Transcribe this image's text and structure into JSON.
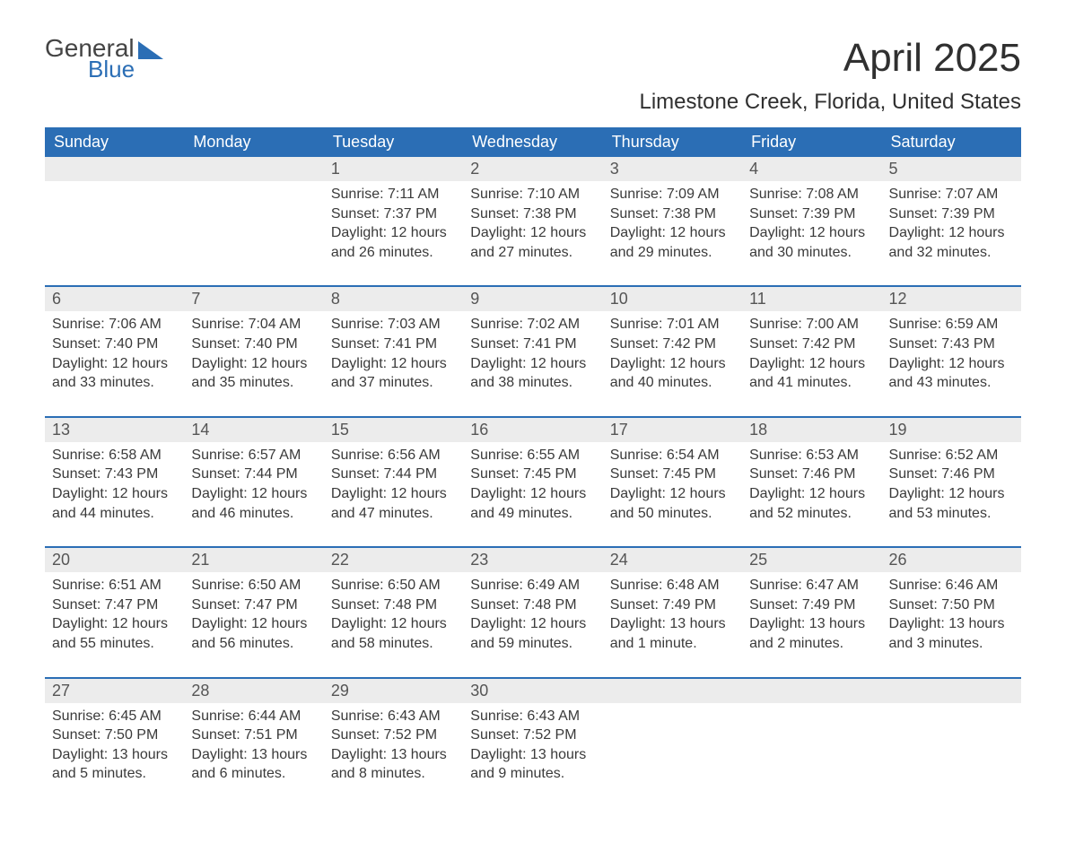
{
  "logo": {
    "line1": "General",
    "line2": "Blue"
  },
  "title": "April 2025",
  "location": "Limestone Creek, Florida, United States",
  "colors": {
    "header_bg": "#2b6eb5",
    "header_text": "#ffffff",
    "week_rule": "#2b6eb5",
    "daynum_bg": "#ececec",
    "text": "#333333",
    "background": "#ffffff"
  },
  "typography": {
    "title_fontsize": 44,
    "location_fontsize": 24,
    "header_fontsize": 18,
    "daynum_fontsize": 18,
    "body_fontsize": 16
  },
  "layout": {
    "columns": 7,
    "rows": 5
  },
  "day_headers": [
    "Sunday",
    "Monday",
    "Tuesday",
    "Wednesday",
    "Thursday",
    "Friday",
    "Saturday"
  ],
  "weeks": [
    [
      null,
      null,
      {
        "n": "1",
        "sunrise": "Sunrise: 7:11 AM",
        "sunset": "Sunset: 7:37 PM",
        "daylight": "Daylight: 12 hours and 26 minutes."
      },
      {
        "n": "2",
        "sunrise": "Sunrise: 7:10 AM",
        "sunset": "Sunset: 7:38 PM",
        "daylight": "Daylight: 12 hours and 27 minutes."
      },
      {
        "n": "3",
        "sunrise": "Sunrise: 7:09 AM",
        "sunset": "Sunset: 7:38 PM",
        "daylight": "Daylight: 12 hours and 29 minutes."
      },
      {
        "n": "4",
        "sunrise": "Sunrise: 7:08 AM",
        "sunset": "Sunset: 7:39 PM",
        "daylight": "Daylight: 12 hours and 30 minutes."
      },
      {
        "n": "5",
        "sunrise": "Sunrise: 7:07 AM",
        "sunset": "Sunset: 7:39 PM",
        "daylight": "Daylight: 12 hours and 32 minutes."
      }
    ],
    [
      {
        "n": "6",
        "sunrise": "Sunrise: 7:06 AM",
        "sunset": "Sunset: 7:40 PM",
        "daylight": "Daylight: 12 hours and 33 minutes."
      },
      {
        "n": "7",
        "sunrise": "Sunrise: 7:04 AM",
        "sunset": "Sunset: 7:40 PM",
        "daylight": "Daylight: 12 hours and 35 minutes."
      },
      {
        "n": "8",
        "sunrise": "Sunrise: 7:03 AM",
        "sunset": "Sunset: 7:41 PM",
        "daylight": "Daylight: 12 hours and 37 minutes."
      },
      {
        "n": "9",
        "sunrise": "Sunrise: 7:02 AM",
        "sunset": "Sunset: 7:41 PM",
        "daylight": "Daylight: 12 hours and 38 minutes."
      },
      {
        "n": "10",
        "sunrise": "Sunrise: 7:01 AM",
        "sunset": "Sunset: 7:42 PM",
        "daylight": "Daylight: 12 hours and 40 minutes."
      },
      {
        "n": "11",
        "sunrise": "Sunrise: 7:00 AM",
        "sunset": "Sunset: 7:42 PM",
        "daylight": "Daylight: 12 hours and 41 minutes."
      },
      {
        "n": "12",
        "sunrise": "Sunrise: 6:59 AM",
        "sunset": "Sunset: 7:43 PM",
        "daylight": "Daylight: 12 hours and 43 minutes."
      }
    ],
    [
      {
        "n": "13",
        "sunrise": "Sunrise: 6:58 AM",
        "sunset": "Sunset: 7:43 PM",
        "daylight": "Daylight: 12 hours and 44 minutes."
      },
      {
        "n": "14",
        "sunrise": "Sunrise: 6:57 AM",
        "sunset": "Sunset: 7:44 PM",
        "daylight": "Daylight: 12 hours and 46 minutes."
      },
      {
        "n": "15",
        "sunrise": "Sunrise: 6:56 AM",
        "sunset": "Sunset: 7:44 PM",
        "daylight": "Daylight: 12 hours and 47 minutes."
      },
      {
        "n": "16",
        "sunrise": "Sunrise: 6:55 AM",
        "sunset": "Sunset: 7:45 PM",
        "daylight": "Daylight: 12 hours and 49 minutes."
      },
      {
        "n": "17",
        "sunrise": "Sunrise: 6:54 AM",
        "sunset": "Sunset: 7:45 PM",
        "daylight": "Daylight: 12 hours and 50 minutes."
      },
      {
        "n": "18",
        "sunrise": "Sunrise: 6:53 AM",
        "sunset": "Sunset: 7:46 PM",
        "daylight": "Daylight: 12 hours and 52 minutes."
      },
      {
        "n": "19",
        "sunrise": "Sunrise: 6:52 AM",
        "sunset": "Sunset: 7:46 PM",
        "daylight": "Daylight: 12 hours and 53 minutes."
      }
    ],
    [
      {
        "n": "20",
        "sunrise": "Sunrise: 6:51 AM",
        "sunset": "Sunset: 7:47 PM",
        "daylight": "Daylight: 12 hours and 55 minutes."
      },
      {
        "n": "21",
        "sunrise": "Sunrise: 6:50 AM",
        "sunset": "Sunset: 7:47 PM",
        "daylight": "Daylight: 12 hours and 56 minutes."
      },
      {
        "n": "22",
        "sunrise": "Sunrise: 6:50 AM",
        "sunset": "Sunset: 7:48 PM",
        "daylight": "Daylight: 12 hours and 58 minutes."
      },
      {
        "n": "23",
        "sunrise": "Sunrise: 6:49 AM",
        "sunset": "Sunset: 7:48 PM",
        "daylight": "Daylight: 12 hours and 59 minutes."
      },
      {
        "n": "24",
        "sunrise": "Sunrise: 6:48 AM",
        "sunset": "Sunset: 7:49 PM",
        "daylight": "Daylight: 13 hours and 1 minute."
      },
      {
        "n": "25",
        "sunrise": "Sunrise: 6:47 AM",
        "sunset": "Sunset: 7:49 PM",
        "daylight": "Daylight: 13 hours and 2 minutes."
      },
      {
        "n": "26",
        "sunrise": "Sunrise: 6:46 AM",
        "sunset": "Sunset: 7:50 PM",
        "daylight": "Daylight: 13 hours and 3 minutes."
      }
    ],
    [
      {
        "n": "27",
        "sunrise": "Sunrise: 6:45 AM",
        "sunset": "Sunset: 7:50 PM",
        "daylight": "Daylight: 13 hours and 5 minutes."
      },
      {
        "n": "28",
        "sunrise": "Sunrise: 6:44 AM",
        "sunset": "Sunset: 7:51 PM",
        "daylight": "Daylight: 13 hours and 6 minutes."
      },
      {
        "n": "29",
        "sunrise": "Sunrise: 6:43 AM",
        "sunset": "Sunset: 7:52 PM",
        "daylight": "Daylight: 13 hours and 8 minutes."
      },
      {
        "n": "30",
        "sunrise": "Sunrise: 6:43 AM",
        "sunset": "Sunset: 7:52 PM",
        "daylight": "Daylight: 13 hours and 9 minutes."
      },
      null,
      null,
      null
    ]
  ]
}
